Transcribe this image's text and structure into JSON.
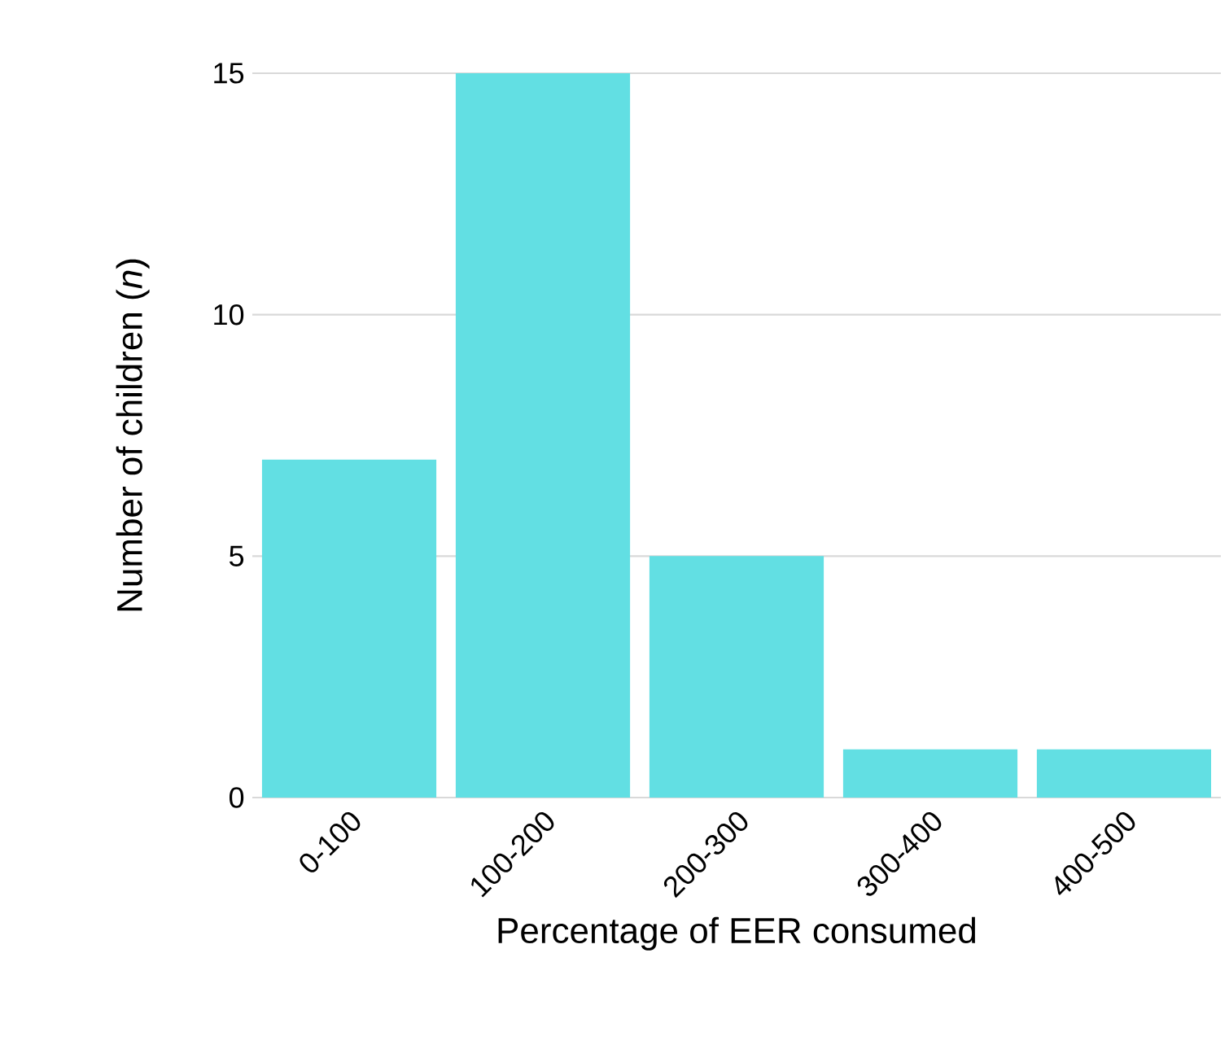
{
  "chart_data": {
    "type": "bar",
    "xlabel": "Percentage of EER consumed",
    "ylabel": "Number of children (*n*)",
    "categories": [
      "0-100",
      "100-200",
      "200-300",
      "300-400",
      "400-500"
    ],
    "values": [
      7,
      15,
      5,
      1,
      1
    ],
    "color": "#62dfe3",
    "ylim": [
      0,
      15
    ],
    "yticks": [
      0,
      5,
      10,
      15
    ],
    "grid": "y"
  }
}
